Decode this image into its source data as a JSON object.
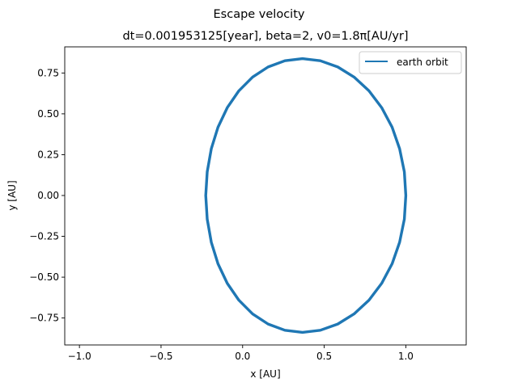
{
  "figure": {
    "suptitle": "Escape velocity"
  },
  "chart_data": {
    "type": "line",
    "title": "dt=0.001953125[year], beta=2, v0=1.8π[AU/yr]",
    "xlabel": "x [AU]",
    "ylabel": "y [AU]",
    "xlim": [
      -1.09,
      1.37
    ],
    "ylim": [
      -0.915,
      0.91
    ],
    "x_ticks": [
      -1.0,
      -0.5,
      0.0,
      0.5,
      1.0
    ],
    "x_tick_labels": [
      "−1.0",
      "−0.5",
      "0.0",
      "0.5",
      "1.0"
    ],
    "y_ticks": [
      -0.75,
      -0.5,
      -0.25,
      0.0,
      0.25,
      0.5,
      0.75
    ],
    "y_tick_labels": [
      "−0.75",
      "−0.50",
      "−0.25",
      "0.00",
      "0.25",
      "0.50",
      "0.75"
    ],
    "grid": false,
    "legend_position": "top-right",
    "series": [
      {
        "name": "earth orbit",
        "color": "#1f77b4",
        "x": [
          1.0,
          0.991,
          0.962,
          0.916,
          0.852,
          0.774,
          0.683,
          0.583,
          0.476,
          0.367,
          0.259,
          0.156,
          0.061,
          -0.023,
          -0.094,
          -0.151,
          -0.192,
          -0.217,
          -0.226,
          -0.217,
          -0.192,
          -0.151,
          -0.094,
          -0.023,
          0.061,
          0.156,
          0.259,
          0.367,
          0.476,
          0.583,
          0.683,
          0.774,
          0.852,
          0.916,
          0.962,
          0.991,
          1.0
        ],
        "y": [
          0.0,
          0.145,
          0.286,
          0.418,
          0.538,
          0.641,
          0.725,
          0.787,
          0.825,
          0.838,
          0.825,
          0.787,
          0.725,
          0.641,
          0.538,
          0.418,
          0.286,
          0.145,
          0.0,
          -0.145,
          -0.286,
          -0.418,
          -0.538,
          -0.641,
          -0.725,
          -0.787,
          -0.825,
          -0.838,
          -0.825,
          -0.787,
          -0.725,
          -0.641,
          -0.538,
          -0.418,
          -0.286,
          -0.145,
          0.0
        ]
      }
    ]
  }
}
